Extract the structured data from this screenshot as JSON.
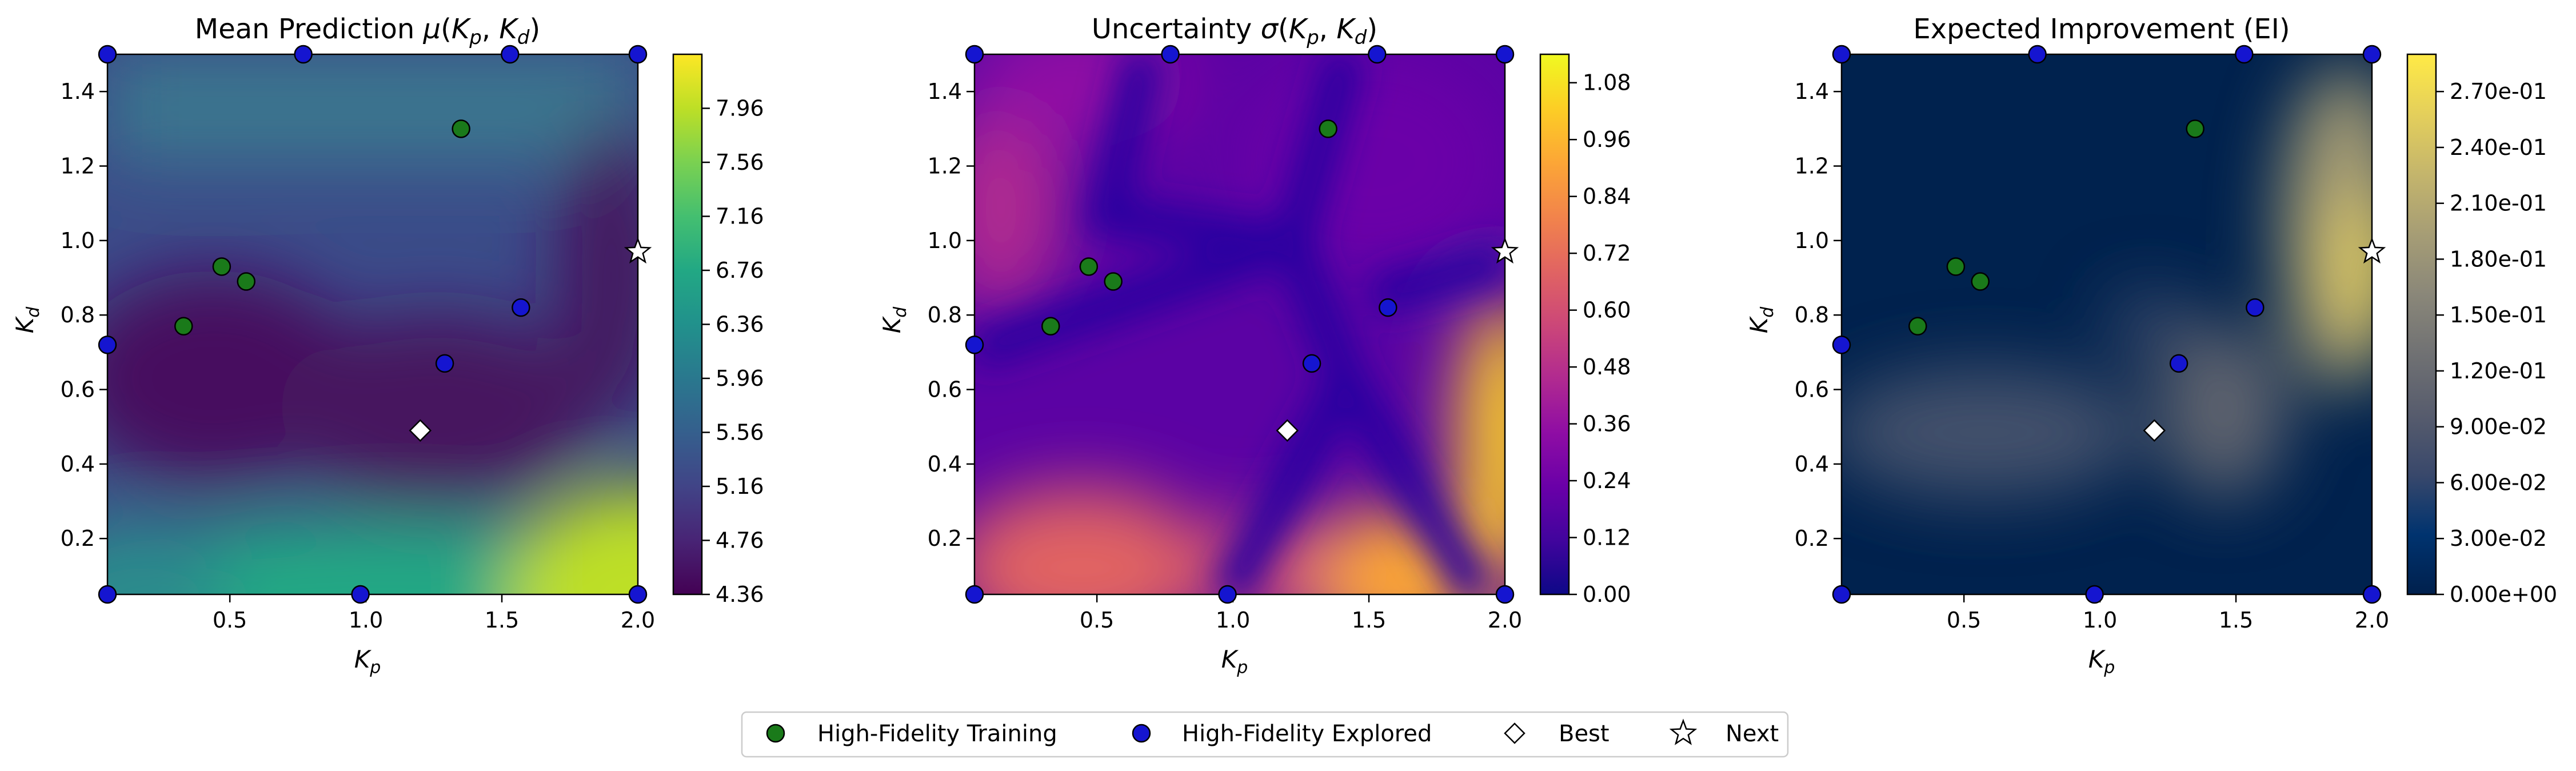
{
  "chart_data": [
    {
      "type": "heatmap",
      "title": "Mean Prediction μ(K_p, K_d)",
      "title_parts": [
        "Mean Prediction ",
        "μ",
        "(",
        "K",
        "p",
        ", ",
        "K",
        "d",
        ")"
      ],
      "xlabel": "K_p",
      "ylabel": "K_d",
      "xlim": [
        0.05,
        2.0
      ],
      "ylim": [
        0.05,
        1.5
      ],
      "xticks": [
        "0.5",
        "1.0",
        "1.5",
        "2.0"
      ],
      "yticks": [
        "0.2",
        "0.4",
        "0.6",
        "0.8",
        "1.0",
        "1.2",
        "1.4"
      ],
      "colormap": "viridis",
      "colorbar_range": [
        4.36,
        8.36
      ],
      "colorbar_ticks": [
        "4.36",
        "4.76",
        "5.16",
        "5.56",
        "5.96",
        "6.36",
        "6.76",
        "7.16",
        "7.56",
        "7.96"
      ]
    },
    {
      "type": "heatmap",
      "title": "Uncertainty σ(K_p, K_d)",
      "title_parts": [
        "Uncertainty ",
        "σ",
        "(",
        "K",
        "p",
        ", ",
        "K",
        "d",
        ")"
      ],
      "xlabel": "K_p",
      "ylabel": "K_d",
      "xlim": [
        0.05,
        2.0
      ],
      "ylim": [
        0.05,
        1.5
      ],
      "xticks": [
        "0.5",
        "1.0",
        "1.5",
        "2.0"
      ],
      "yticks": [
        "0.2",
        "0.4",
        "0.6",
        "0.8",
        "1.0",
        "1.2",
        "1.4"
      ],
      "colormap": "plasma",
      "colorbar_range": [
        0.0,
        1.14
      ],
      "colorbar_ticks": [
        "0.00",
        "0.12",
        "0.24",
        "0.36",
        "0.48",
        "0.60",
        "0.72",
        "0.84",
        "0.96",
        "1.08"
      ]
    },
    {
      "type": "heatmap",
      "title": "Expected Improvement (EI)",
      "title_parts": [
        "Expected Improvement (EI)",
        "",
        "",
        "",
        "",
        "",
        "",
        "",
        ""
      ],
      "xlabel": "K_p",
      "ylabel": "K_d",
      "xlim": [
        0.05,
        2.0
      ],
      "ylim": [
        0.05,
        1.5
      ],
      "xticks": [
        "0.5",
        "1.0",
        "1.5",
        "2.0"
      ],
      "yticks": [
        "0.2",
        "0.4",
        "0.6",
        "0.8",
        "1.0",
        "1.2",
        "1.4"
      ],
      "colormap": "cividis",
      "colorbar_range": [
        0.0,
        0.29
      ],
      "colorbar_ticks": [
        "0.00e+00",
        "3.00e-02",
        "6.00e-02",
        "9.00e-02",
        "1.20e-01",
        "1.50e-01",
        "1.80e-01",
        "2.10e-01",
        "2.40e-01",
        "2.70e-01"
      ]
    }
  ],
  "points": {
    "high_fidelity_training": [
      [
        0.33,
        0.77
      ],
      [
        0.47,
        0.93
      ],
      [
        0.56,
        0.89
      ],
      [
        1.35,
        1.3
      ]
    ],
    "high_fidelity_explored": [
      [
        0.05,
        0.72
      ],
      [
        0.05,
        1.5
      ],
      [
        0.05,
        0.05
      ],
      [
        0.77,
        1.5
      ],
      [
        1.53,
        1.5
      ],
      [
        2.0,
        1.5
      ],
      [
        1.57,
        0.82
      ],
      [
        1.29,
        0.67
      ],
      [
        0.98,
        0.05
      ],
      [
        2.0,
        0.05
      ]
    ],
    "best": [
      1.2,
      0.49
    ],
    "next": [
      2.0,
      0.97
    ]
  },
  "legend": {
    "placement": "bottom-center",
    "items": [
      {
        "label": "High-Fidelity Training",
        "marker": "circle",
        "color": "#1a7a1a"
      },
      {
        "label": "High-Fidelity Explored",
        "marker": "circle",
        "color": "#1515d0"
      },
      {
        "label": "Best",
        "marker": "diamond",
        "color": "#ffffff"
      },
      {
        "label": "Next",
        "marker": "star",
        "color": "#ffffff"
      }
    ]
  }
}
